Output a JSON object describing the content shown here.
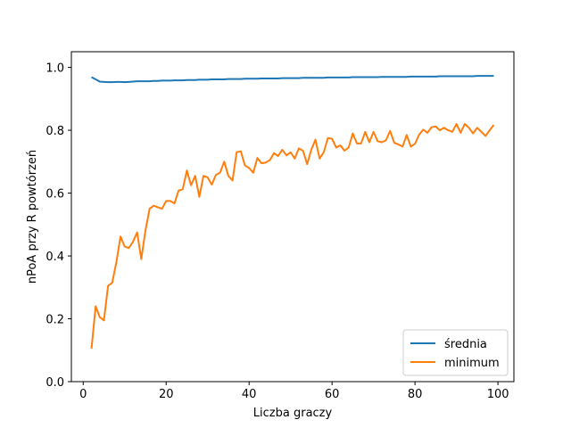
{
  "chart_data": {
    "type": "line",
    "title": "",
    "xlabel": "Liczba graczy",
    "ylabel": "nPoA przy R powtórzeń",
    "xlim": [
      -2.85,
      103.85
    ],
    "ylim": [
      0.0,
      1.05
    ],
    "xticks": [
      0,
      20,
      40,
      60,
      80,
      100
    ],
    "yticks": [
      0.0,
      0.2,
      0.4,
      0.6,
      0.8,
      1.0
    ],
    "xtick_labels": [
      "0",
      "20",
      "40",
      "60",
      "80",
      "100"
    ],
    "ytick_labels": [
      "0.0",
      "0.2",
      "0.4",
      "0.6",
      "0.8",
      "1.0"
    ],
    "grid": false,
    "legend_position": "bottom-right",
    "x": [
      2,
      3,
      4,
      5,
      6,
      7,
      8,
      9,
      10,
      11,
      12,
      13,
      14,
      15,
      16,
      17,
      18,
      19,
      20,
      21,
      22,
      23,
      24,
      25,
      26,
      27,
      28,
      29,
      30,
      31,
      32,
      33,
      34,
      35,
      36,
      37,
      38,
      39,
      40,
      41,
      42,
      43,
      44,
      45,
      46,
      47,
      48,
      49,
      50,
      51,
      52,
      53,
      54,
      55,
      56,
      57,
      58,
      59,
      60,
      61,
      62,
      63,
      64,
      65,
      66,
      67,
      68,
      69,
      70,
      71,
      72,
      73,
      74,
      75,
      76,
      77,
      78,
      79,
      80,
      81,
      82,
      83,
      84,
      85,
      86,
      87,
      88,
      89,
      90,
      91,
      92,
      93,
      94,
      95,
      96,
      97,
      98,
      99
    ],
    "series": [
      {
        "name": "średnia",
        "color": "#1f77b4",
        "values": [
          0.969,
          0.962,
          0.955,
          0.954,
          0.953,
          0.953,
          0.954,
          0.954,
          0.953,
          0.954,
          0.955,
          0.956,
          0.956,
          0.956,
          0.956,
          0.957,
          0.957,
          0.958,
          0.958,
          0.958,
          0.959,
          0.959,
          0.959,
          0.96,
          0.96,
          0.96,
          0.961,
          0.961,
          0.961,
          0.962,
          0.962,
          0.962,
          0.962,
          0.963,
          0.963,
          0.963,
          0.963,
          0.964,
          0.964,
          0.964,
          0.964,
          0.965,
          0.965,
          0.965,
          0.965,
          0.965,
          0.966,
          0.966,
          0.966,
          0.966,
          0.966,
          0.967,
          0.967,
          0.967,
          0.967,
          0.967,
          0.967,
          0.968,
          0.968,
          0.968,
          0.968,
          0.968,
          0.968,
          0.969,
          0.969,
          0.969,
          0.969,
          0.969,
          0.969,
          0.969,
          0.97,
          0.97,
          0.97,
          0.97,
          0.97,
          0.97,
          0.97,
          0.971,
          0.971,
          0.971,
          0.971,
          0.971,
          0.971,
          0.971,
          0.972,
          0.972,
          0.972,
          0.972,
          0.972,
          0.972,
          0.972,
          0.972,
          0.972,
          0.973,
          0.973,
          0.973,
          0.973,
          0.973
        ]
      },
      {
        "name": "minimum",
        "color": "#ff7f0e",
        "values": [
          0.105,
          0.24,
          0.205,
          0.195,
          0.305,
          0.315,
          0.38,
          0.462,
          0.43,
          0.425,
          0.445,
          0.475,
          0.39,
          0.48,
          0.55,
          0.56,
          0.555,
          0.55,
          0.575,
          0.575,
          0.567,
          0.608,
          0.612,
          0.672,
          0.625,
          0.655,
          0.588,
          0.655,
          0.65,
          0.627,
          0.658,
          0.665,
          0.7,
          0.655,
          0.64,
          0.73,
          0.733,
          0.688,
          0.68,
          0.665,
          0.712,
          0.695,
          0.697,
          0.705,
          0.727,
          0.718,
          0.738,
          0.72,
          0.73,
          0.71,
          0.742,
          0.735,
          0.692,
          0.738,
          0.77,
          0.71,
          0.73,
          0.775,
          0.773,
          0.745,
          0.752,
          0.735,
          0.745,
          0.79,
          0.758,
          0.758,
          0.795,
          0.762,
          0.795,
          0.765,
          0.762,
          0.768,
          0.798,
          0.76,
          0.755,
          0.748,
          0.785,
          0.748,
          0.757,
          0.786,
          0.802,
          0.792,
          0.81,
          0.812,
          0.8,
          0.808,
          0.8,
          0.795,
          0.82,
          0.792,
          0.82,
          0.808,
          0.79,
          0.808,
          0.795,
          0.782,
          0.8,
          0.817
        ]
      }
    ]
  }
}
